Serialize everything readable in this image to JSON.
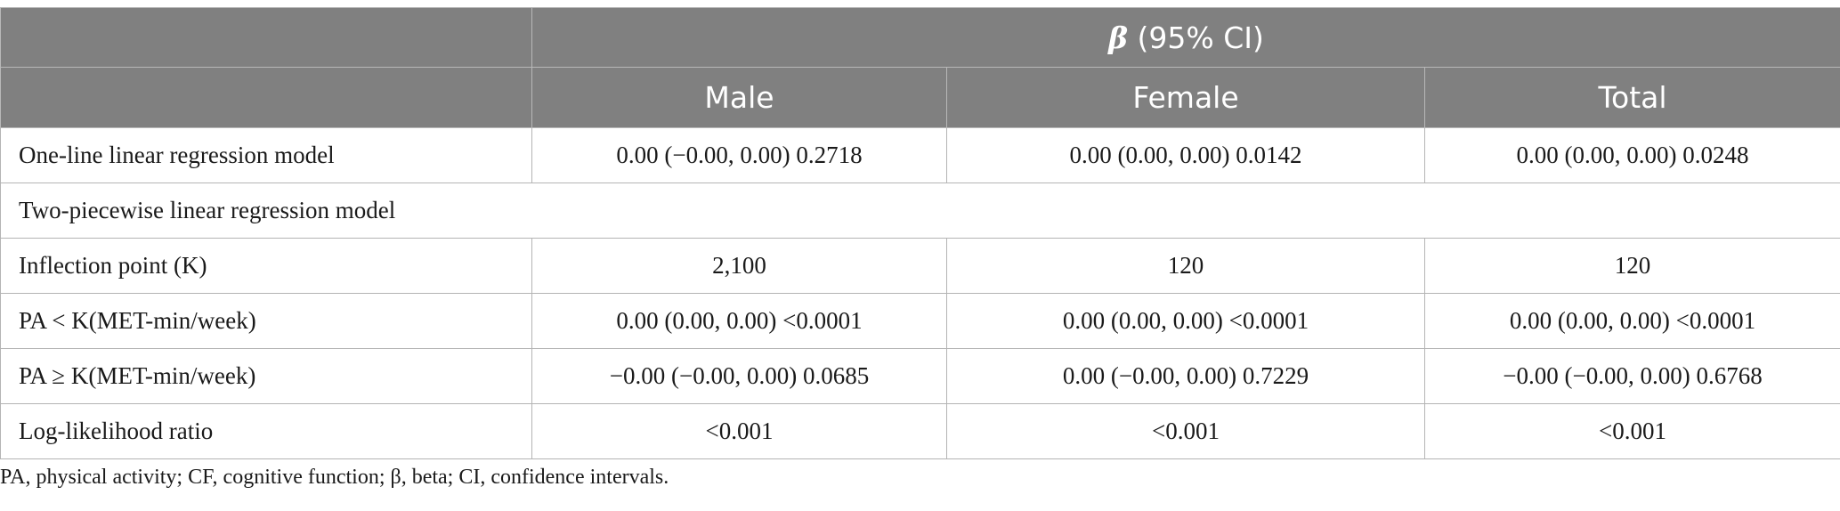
{
  "header": {
    "group_symbol": "β",
    "group_suffix": " (95% CI)",
    "columns": [
      "Male",
      "Female",
      "Total"
    ]
  },
  "rows": [
    {
      "label": "One-line linear regression model",
      "values": [
        "0.00 (−0.00, 0.00) 0.2718",
        "0.00 (0.00, 0.00) 0.0142",
        "0.00 (0.00, 0.00) 0.0248"
      ]
    },
    {
      "label": "Two-piecewise linear regression model"
    },
    {
      "label": "Inflection point (K)",
      "values": [
        "2,100",
        "120",
        "120"
      ]
    },
    {
      "label": "PA < K(MET-min/week)",
      "values": [
        "0.00 (0.00, 0.00) <0.0001",
        "0.00 (0.00, 0.00) <0.0001",
        "0.00 (0.00, 0.00) <0.0001"
      ]
    },
    {
      "label": "PA ≥ K(MET-min/week)",
      "values": [
        "−0.00 (−0.00, 0.00) 0.0685",
        "0.00 (−0.00, 0.00) 0.7229",
        "−0.00 (−0.00, 0.00) 0.6768"
      ]
    },
    {
      "label": "Log-likelihood ratio",
      "values": [
        "<0.001",
        "<0.001",
        "<0.001"
      ]
    }
  ],
  "footnote": "PA, physical activity; CF, cognitive function; β, beta; CI, confidence intervals."
}
